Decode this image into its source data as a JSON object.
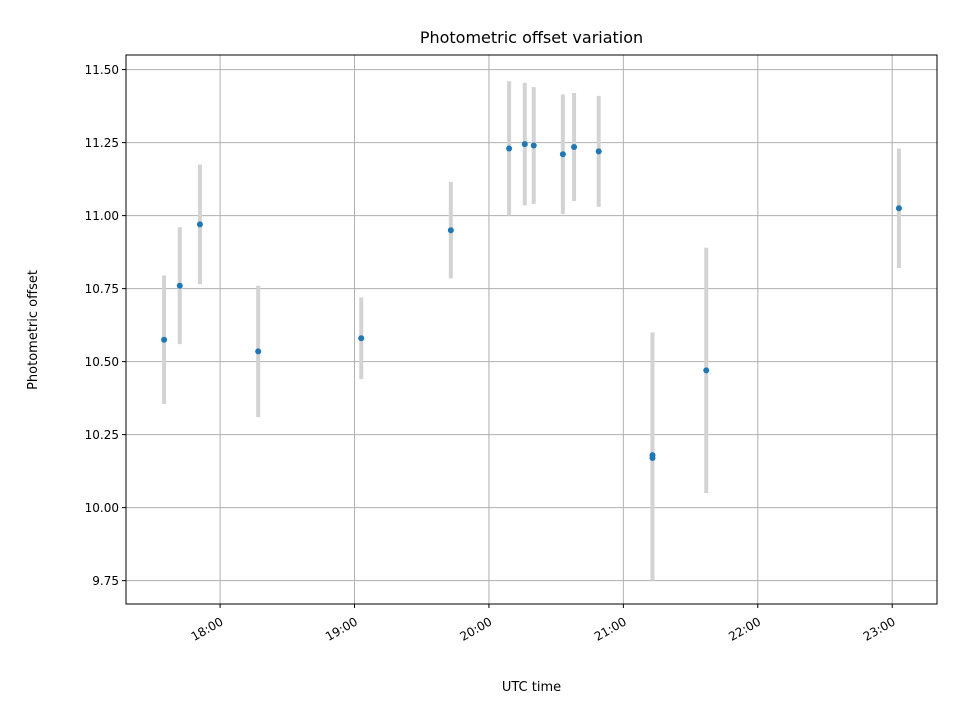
{
  "chart_data": {
    "type": "scatter",
    "title": "Photometric offset variation",
    "xlabel": "UTC time",
    "ylabel": "Photometric offset",
    "x_tick_labels": [
      "18:00",
      "19:00",
      "20:00",
      "21:00",
      "22:00",
      "23:00"
    ],
    "y_tick_labels": [
      "9.75",
      "10.00",
      "10.25",
      "10.50",
      "10.75",
      "11.00",
      "11.25",
      "11.50"
    ],
    "xlim": [
      "17:18",
      "23:20"
    ],
    "ylim": [
      9.67,
      11.55
    ],
    "grid": true,
    "legend": "none",
    "colors": {
      "point": "#1f77b4",
      "errorbar": "#d3d3d3",
      "grid": "#b0b0b0"
    },
    "points": [
      {
        "x": "17:35",
        "y": 10.575,
        "err": 0.22
      },
      {
        "x": "17:42",
        "y": 10.76,
        "err": 0.2
      },
      {
        "x": "17:51",
        "y": 10.97,
        "err": 0.205
      },
      {
        "x": "18:17",
        "y": 10.535,
        "err": 0.225
      },
      {
        "x": "19:03",
        "y": 10.58,
        "err": 0.14
      },
      {
        "x": "19:43",
        "y": 10.95,
        "err": 0.165
      },
      {
        "x": "20:09",
        "y": 11.23,
        "err": 0.23
      },
      {
        "x": "20:16",
        "y": 11.245,
        "err": 0.21
      },
      {
        "x": "20:20",
        "y": 11.24,
        "err": 0.2
      },
      {
        "x": "20:33",
        "y": 11.21,
        "err": 0.205
      },
      {
        "x": "20:38",
        "y": 11.235,
        "err": 0.185
      },
      {
        "x": "20:49",
        "y": 11.22,
        "err": 0.19
      },
      {
        "x": "21:13",
        "y": 10.18,
        "err": 0.42
      },
      {
        "x": "21:13",
        "y": 10.17,
        "err": 0.42
      },
      {
        "x": "21:37",
        "y": 10.47,
        "err": 0.42
      },
      {
        "x": "23:03",
        "y": 11.025,
        "err": 0.205
      }
    ]
  }
}
